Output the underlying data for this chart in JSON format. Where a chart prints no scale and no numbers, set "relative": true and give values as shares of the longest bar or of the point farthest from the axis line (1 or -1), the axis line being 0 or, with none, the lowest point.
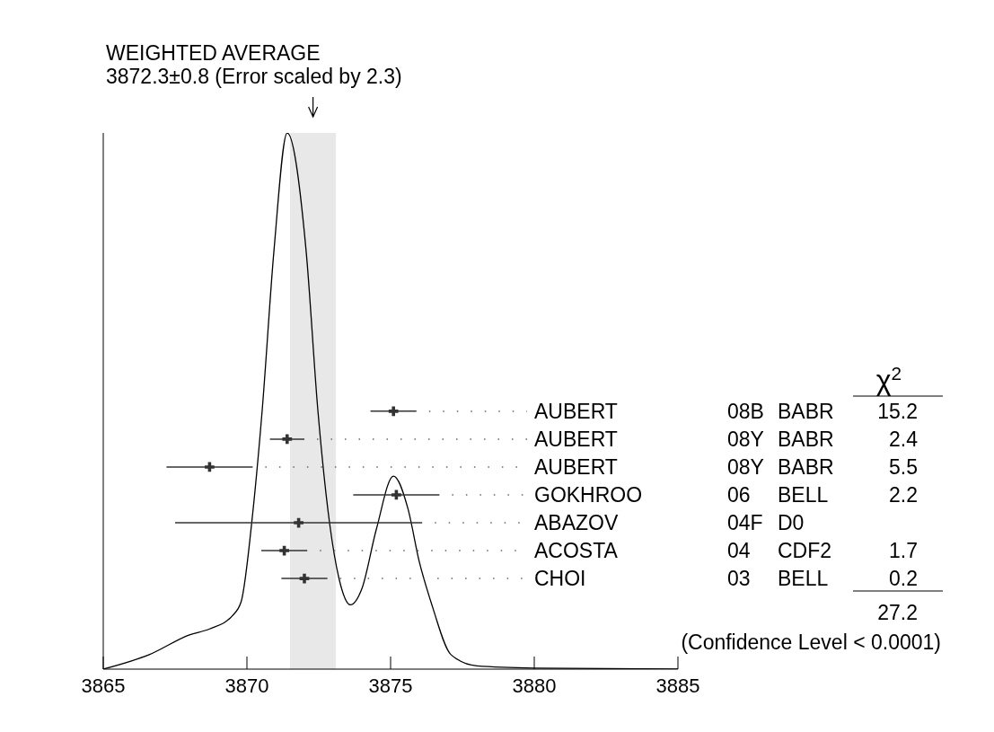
{
  "chart_data": {
    "type": "line",
    "title": "WEIGHTED AVERAGE",
    "subtitle": "3872.3±0.8 (Error scaled by 2.3)",
    "relative": true,
    "xlim": [
      3865,
      3885
    ],
    "xticks": [
      3865,
      3870,
      3875,
      3880,
      3885
    ],
    "tick_labels": "x",
    "marker": "none",
    "bands": [
      {
        "axis": "x",
        "from": 3871.5,
        "to": 3873.1,
        "color": "#e8e8e8"
      }
    ],
    "series": [
      {
        "color": "#000000",
        "x": [
          3865,
          3866.6,
          3868,
          3868.7,
          3869.5,
          3869.8,
          3870.2,
          3870.53,
          3870.94,
          3871.4,
          3872.06,
          3872.47,
          3872.88,
          3873.2,
          3873.6,
          3874,
          3874.5,
          3875.1,
          3875.6,
          3876,
          3876.4,
          3876.5,
          3877.1,
          3878,
          3880,
          3885
        ],
        "values": [
          0,
          0.027,
          0.064,
          0.075,
          0.1,
          0.126,
          0.29,
          0.482,
          0.78,
          1,
          0.78,
          0.482,
          0.271,
          0.17,
          0.12,
          0.15,
          0.26,
          0.36,
          0.3,
          0.2,
          0.126,
          0.109,
          0.027,
          0.006,
          0.002,
          0
        ]
      },
      {
        "type": "scatter",
        "marker": "cross",
        "color": "#333333",
        "x": [
          3875.1,
          3871.4,
          3868.7,
          3875.2,
          3871.8,
          3871.3,
          3872.0
        ],
        "values": [
          0.481,
          0.429,
          0.377,
          0.325,
          0.273,
          0.221,
          0.169
        ],
        "xerrors": [
          0.8,
          0.6,
          1.5,
          1.5,
          4.3,
          0.8,
          0.8
        ]
      }
    ],
    "annotations": [
      "χ$^{2}$",
      "AUBERT",
      "08B",
      "BABR",
      "15.2",
      "AUBERT",
      "08Y",
      "BABR",
      "2.4",
      "AUBERT",
      "08Y",
      "BABR",
      "5.5",
      "GOKHROO",
      "06",
      "BELL",
      "2.2",
      "ABAZOV",
      "04F",
      "D0",
      "ACOSTA",
      "04",
      "CDF2",
      "1.7",
      "CHOI",
      "03",
      "BELL",
      "0.2",
      "27.2",
      "(Confidence Level < 0.0001)"
    ]
  }
}
